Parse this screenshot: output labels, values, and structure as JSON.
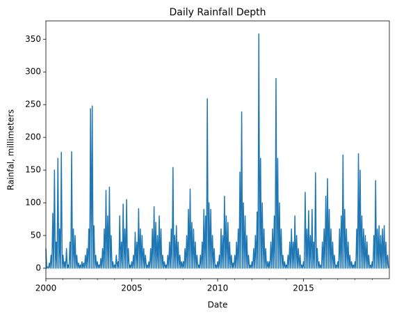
{
  "chart_data": {
    "type": "line",
    "title": "Daily Rainfall Depth",
    "x_label": "Date",
    "y_label": "Rainfal, millimeters",
    "color": "#1f77b4",
    "xlim": [
      2000,
      2020
    ],
    "xticks": [
      2000,
      2005,
      2010,
      2015
    ],
    "xminorticks": [
      2001,
      2002,
      2003,
      2004,
      2006,
      2007,
      2008,
      2009,
      2011,
      2012,
      2013,
      2014,
      2016,
      2017,
      2018,
      2019
    ],
    "ylim": [
      -16,
      378
    ],
    "yticks": [
      0,
      50,
      100,
      150,
      200,
      250,
      300,
      350
    ],
    "x": [
      2000,
      2000.05,
      2000.1,
      2000.15,
      2000.2,
      2000.25,
      2000.3,
      2000.35,
      2000.4,
      2000.45,
      2000.5,
      2000.55,
      2000.6,
      2000.65,
      2000.7,
      2000.75,
      2000.8,
      2000.85,
      2000.9,
      2000.95,
      2001,
      2001.05,
      2001.1,
      2001.15,
      2001.2,
      2001.25,
      2001.3,
      2001.35,
      2001.4,
      2001.45,
      2001.5,
      2001.55,
      2001.6,
      2001.65,
      2001.7,
      2001.75,
      2001.8,
      2001.85,
      2001.9,
      2001.95,
      2002,
      2002.05,
      2002.1,
      2002.15,
      2002.2,
      2002.25,
      2002.3,
      2002.35,
      2002.4,
      2002.45,
      2002.5,
      2002.55,
      2002.6,
      2002.65,
      2002.7,
      2002.75,
      2002.8,
      2002.85,
      2002.9,
      2002.95,
      2003,
      2003.05,
      2003.1,
      2003.15,
      2003.2,
      2003.25,
      2003.3,
      2003.35,
      2003.4,
      2003.45,
      2003.5,
      2003.55,
      2003.6,
      2003.65,
      2003.7,
      2003.75,
      2003.8,
      2003.85,
      2003.9,
      2003.95,
      2004,
      2004.05,
      2004.1,
      2004.15,
      2004.2,
      2004.25,
      2004.3,
      2004.35,
      2004.4,
      2004.45,
      2004.5,
      2004.55,
      2004.6,
      2004.65,
      2004.7,
      2004.75,
      2004.8,
      2004.85,
      2004.9,
      2004.95,
      2005,
      2005.05,
      2005.1,
      2005.15,
      2005.2,
      2005.25,
      2005.3,
      2005.35,
      2005.4,
      2005.45,
      2005.5,
      2005.55,
      2005.6,
      2005.65,
      2005.7,
      2005.75,
      2005.8,
      2005.85,
      2005.9,
      2005.95,
      2006,
      2006.05,
      2006.1,
      2006.15,
      2006.2,
      2006.25,
      2006.3,
      2006.35,
      2006.4,
      2006.45,
      2006.5,
      2006.55,
      2006.6,
      2006.65,
      2006.7,
      2006.75,
      2006.8,
      2006.85,
      2006.9,
      2006.95,
      2007,
      2007.05,
      2007.1,
      2007.15,
      2007.2,
      2007.25,
      2007.3,
      2007.35,
      2007.4,
      2007.45,
      2007.5,
      2007.55,
      2007.6,
      2007.65,
      2007.7,
      2007.75,
      2007.8,
      2007.85,
      2007.9,
      2007.95,
      2008,
      2008.05,
      2008.1,
      2008.15,
      2008.2,
      2008.25,
      2008.3,
      2008.35,
      2008.4,
      2008.45,
      2008.5,
      2008.55,
      2008.6,
      2008.65,
      2008.7,
      2008.75,
      2008.8,
      2008.85,
      2008.9,
      2008.95,
      2009,
      2009.05,
      2009.1,
      2009.15,
      2009.2,
      2009.25,
      2009.3,
      2009.35,
      2009.4,
      2009.45,
      2009.5,
      2009.55,
      2009.6,
      2009.65,
      2009.7,
      2009.75,
      2009.8,
      2009.85,
      2009.9,
      2009.95,
      2010,
      2010.05,
      2010.1,
      2010.15,
      2010.2,
      2010.25,
      2010.3,
      2010.35,
      2010.4,
      2010.45,
      2010.5,
      2010.55,
      2010.6,
      2010.65,
      2010.7,
      2010.75,
      2010.8,
      2010.85,
      2010.9,
      2010.95,
      2011,
      2011.05,
      2011.1,
      2011.15,
      2011.2,
      2011.25,
      2011.3,
      2011.35,
      2011.4,
      2011.45,
      2011.5,
      2011.55,
      2011.6,
      2011.65,
      2011.7,
      2011.75,
      2011.8,
      2011.85,
      2011.9,
      2011.95,
      2012,
      2012.05,
      2012.1,
      2012.15,
      2012.2,
      2012.25,
      2012.3,
      2012.35,
      2012.4,
      2012.45,
      2012.5,
      2012.55,
      2012.6,
      2012.65,
      2012.7,
      2012.75,
      2012.8,
      2012.85,
      2012.9,
      2012.95,
      2013,
      2013.05,
      2013.1,
      2013.15,
      2013.2,
      2013.25,
      2013.3,
      2013.35,
      2013.4,
      2013.45,
      2013.5,
      2013.55,
      2013.6,
      2013.65,
      2013.7,
      2013.75,
      2013.8,
      2013.85,
      2013.9,
      2013.95,
      2014,
      2014.05,
      2014.1,
      2014.15,
      2014.2,
      2014.25,
      2014.3,
      2014.35,
      2014.4,
      2014.45,
      2014.5,
      2014.55,
      2014.6,
      2014.65,
      2014.7,
      2014.75,
      2014.8,
      2014.85,
      2014.9,
      2014.95,
      2015,
      2015.05,
      2015.1,
      2015.15,
      2015.2,
      2015.25,
      2015.3,
      2015.35,
      2015.4,
      2015.45,
      2015.5,
      2015.55,
      2015.6,
      2015.65,
      2015.7,
      2015.75,
      2015.8,
      2015.85,
      2015.9,
      2015.95,
      2016,
      2016.05,
      2016.1,
      2016.15,
      2016.2,
      2016.25,
      2016.3,
      2016.35,
      2016.4,
      2016.45,
      2016.5,
      2016.55,
      2016.6,
      2016.65,
      2016.7,
      2016.75,
      2016.8,
      2016.85,
      2016.9,
      2016.95,
      2017,
      2017.05,
      2017.1,
      2017.15,
      2017.2,
      2017.25,
      2017.3,
      2017.35,
      2017.4,
      2017.45,
      2017.5,
      2017.55,
      2017.6,
      2017.65,
      2017.7,
      2017.75,
      2017.8,
      2017.85,
      2017.9,
      2017.95,
      2018,
      2018.05,
      2018.1,
      2018.15,
      2018.2,
      2018.25,
      2018.3,
      2018.35,
      2018.4,
      2018.45,
      2018.5,
      2018.55,
      2018.6,
      2018.65,
      2018.7,
      2018.75,
      2018.8,
      2018.85,
      2018.9,
      2018.95,
      2019,
      2019.05,
      2019.1,
      2019.15,
      2019.2,
      2019.25,
      2019.3,
      2019.35,
      2019.4,
      2019.45,
      2019.5,
      2019.55,
      2019.6,
      2019.65,
      2019.7,
      2019.75,
      2019.8,
      2019.85,
      2019.9,
      2019.95
    ],
    "values": [
      30,
      0,
      2,
      0,
      8,
      0,
      20,
      0,
      84,
      0,
      150,
      0,
      40,
      0,
      168,
      0,
      60,
      0,
      177,
      0,
      20,
      0,
      10,
      0,
      30,
      0,
      5,
      0,
      40,
      0,
      178,
      0,
      60,
      0,
      50,
      0,
      20,
      0,
      8,
      0,
      5,
      0,
      10,
      0,
      8,
      0,
      20,
      0,
      30,
      0,
      60,
      0,
      244,
      0,
      248,
      0,
      65,
      0,
      20,
      0,
      10,
      0,
      5,
      0,
      15,
      0,
      30,
      0,
      60,
      0,
      119,
      0,
      80,
      0,
      124,
      0,
      50,
      0,
      10,
      0,
      5,
      0,
      20,
      0,
      10,
      0,
      80,
      0,
      40,
      0,
      98,
      0,
      60,
      0,
      105,
      0,
      30,
      0,
      5,
      0,
      10,
      0,
      20,
      0,
      55,
      0,
      40,
      0,
      91,
      0,
      60,
      0,
      50,
      0,
      30,
      0,
      20,
      0,
      5,
      0,
      10,
      0,
      30,
      0,
      60,
      0,
      94,
      0,
      70,
      0,
      50,
      0,
      80,
      0,
      60,
      0,
      20,
      0,
      10,
      0,
      5,
      0,
      20,
      0,
      40,
      0,
      60,
      0,
      154,
      0,
      50,
      0,
      65,
      0,
      40,
      0,
      20,
      0,
      10,
      0,
      10,
      0,
      30,
      0,
      50,
      0,
      90,
      0,
      121,
      0,
      70,
      0,
      60,
      0,
      40,
      0,
      20,
      0,
      5,
      0,
      20,
      0,
      40,
      0,
      90,
      0,
      80,
      0,
      259,
      0,
      100,
      0,
      90,
      0,
      50,
      0,
      30,
      0,
      5,
      0,
      10,
      0,
      20,
      0,
      60,
      0,
      50,
      0,
      110,
      0,
      80,
      0,
      70,
      0,
      40,
      0,
      20,
      0,
      8,
      0,
      20,
      0,
      40,
      0,
      60,
      0,
      147,
      0,
      239,
      0,
      100,
      0,
      80,
      0,
      50,
      0,
      20,
      0,
      5,
      0,
      10,
      0,
      30,
      0,
      50,
      0,
      86,
      0,
      358,
      0,
      168,
      0,
      100,
      0,
      60,
      0,
      30,
      0,
      10,
      0,
      10,
      0,
      40,
      0,
      60,
      0,
      80,
      0,
      290,
      0,
      168,
      0,
      100,
      0,
      60,
      0,
      20,
      0,
      10,
      0,
      5,
      0,
      20,
      0,
      40,
      0,
      60,
      0,
      40,
      0,
      80,
      0,
      50,
      0,
      30,
      0,
      20,
      0,
      5,
      0,
      10,
      0,
      116,
      0,
      60,
      0,
      88,
      0,
      50,
      0,
      90,
      0,
      40,
      0,
      146,
      0,
      30,
      0,
      10,
      0,
      5,
      0,
      40,
      0,
      60,
      0,
      110,
      0,
      137,
      0,
      90,
      0,
      60,
      0,
      40,
      0,
      20,
      0,
      5,
      0,
      10,
      0,
      60,
      0,
      80,
      0,
      173,
      0,
      90,
      0,
      60,
      0,
      40,
      0,
      20,
      0,
      10,
      0,
      5,
      0,
      10,
      0,
      60,
      0,
      175,
      0,
      150,
      0,
      80,
      0,
      60,
      0,
      50,
      0,
      40,
      0,
      20,
      0,
      5,
      0,
      10,
      0,
      50,
      0,
      134,
      0,
      60,
      0,
      65,
      0,
      50,
      0,
      60,
      0,
      65,
      0,
      40,
      0,
      20,
      0
    ]
  }
}
